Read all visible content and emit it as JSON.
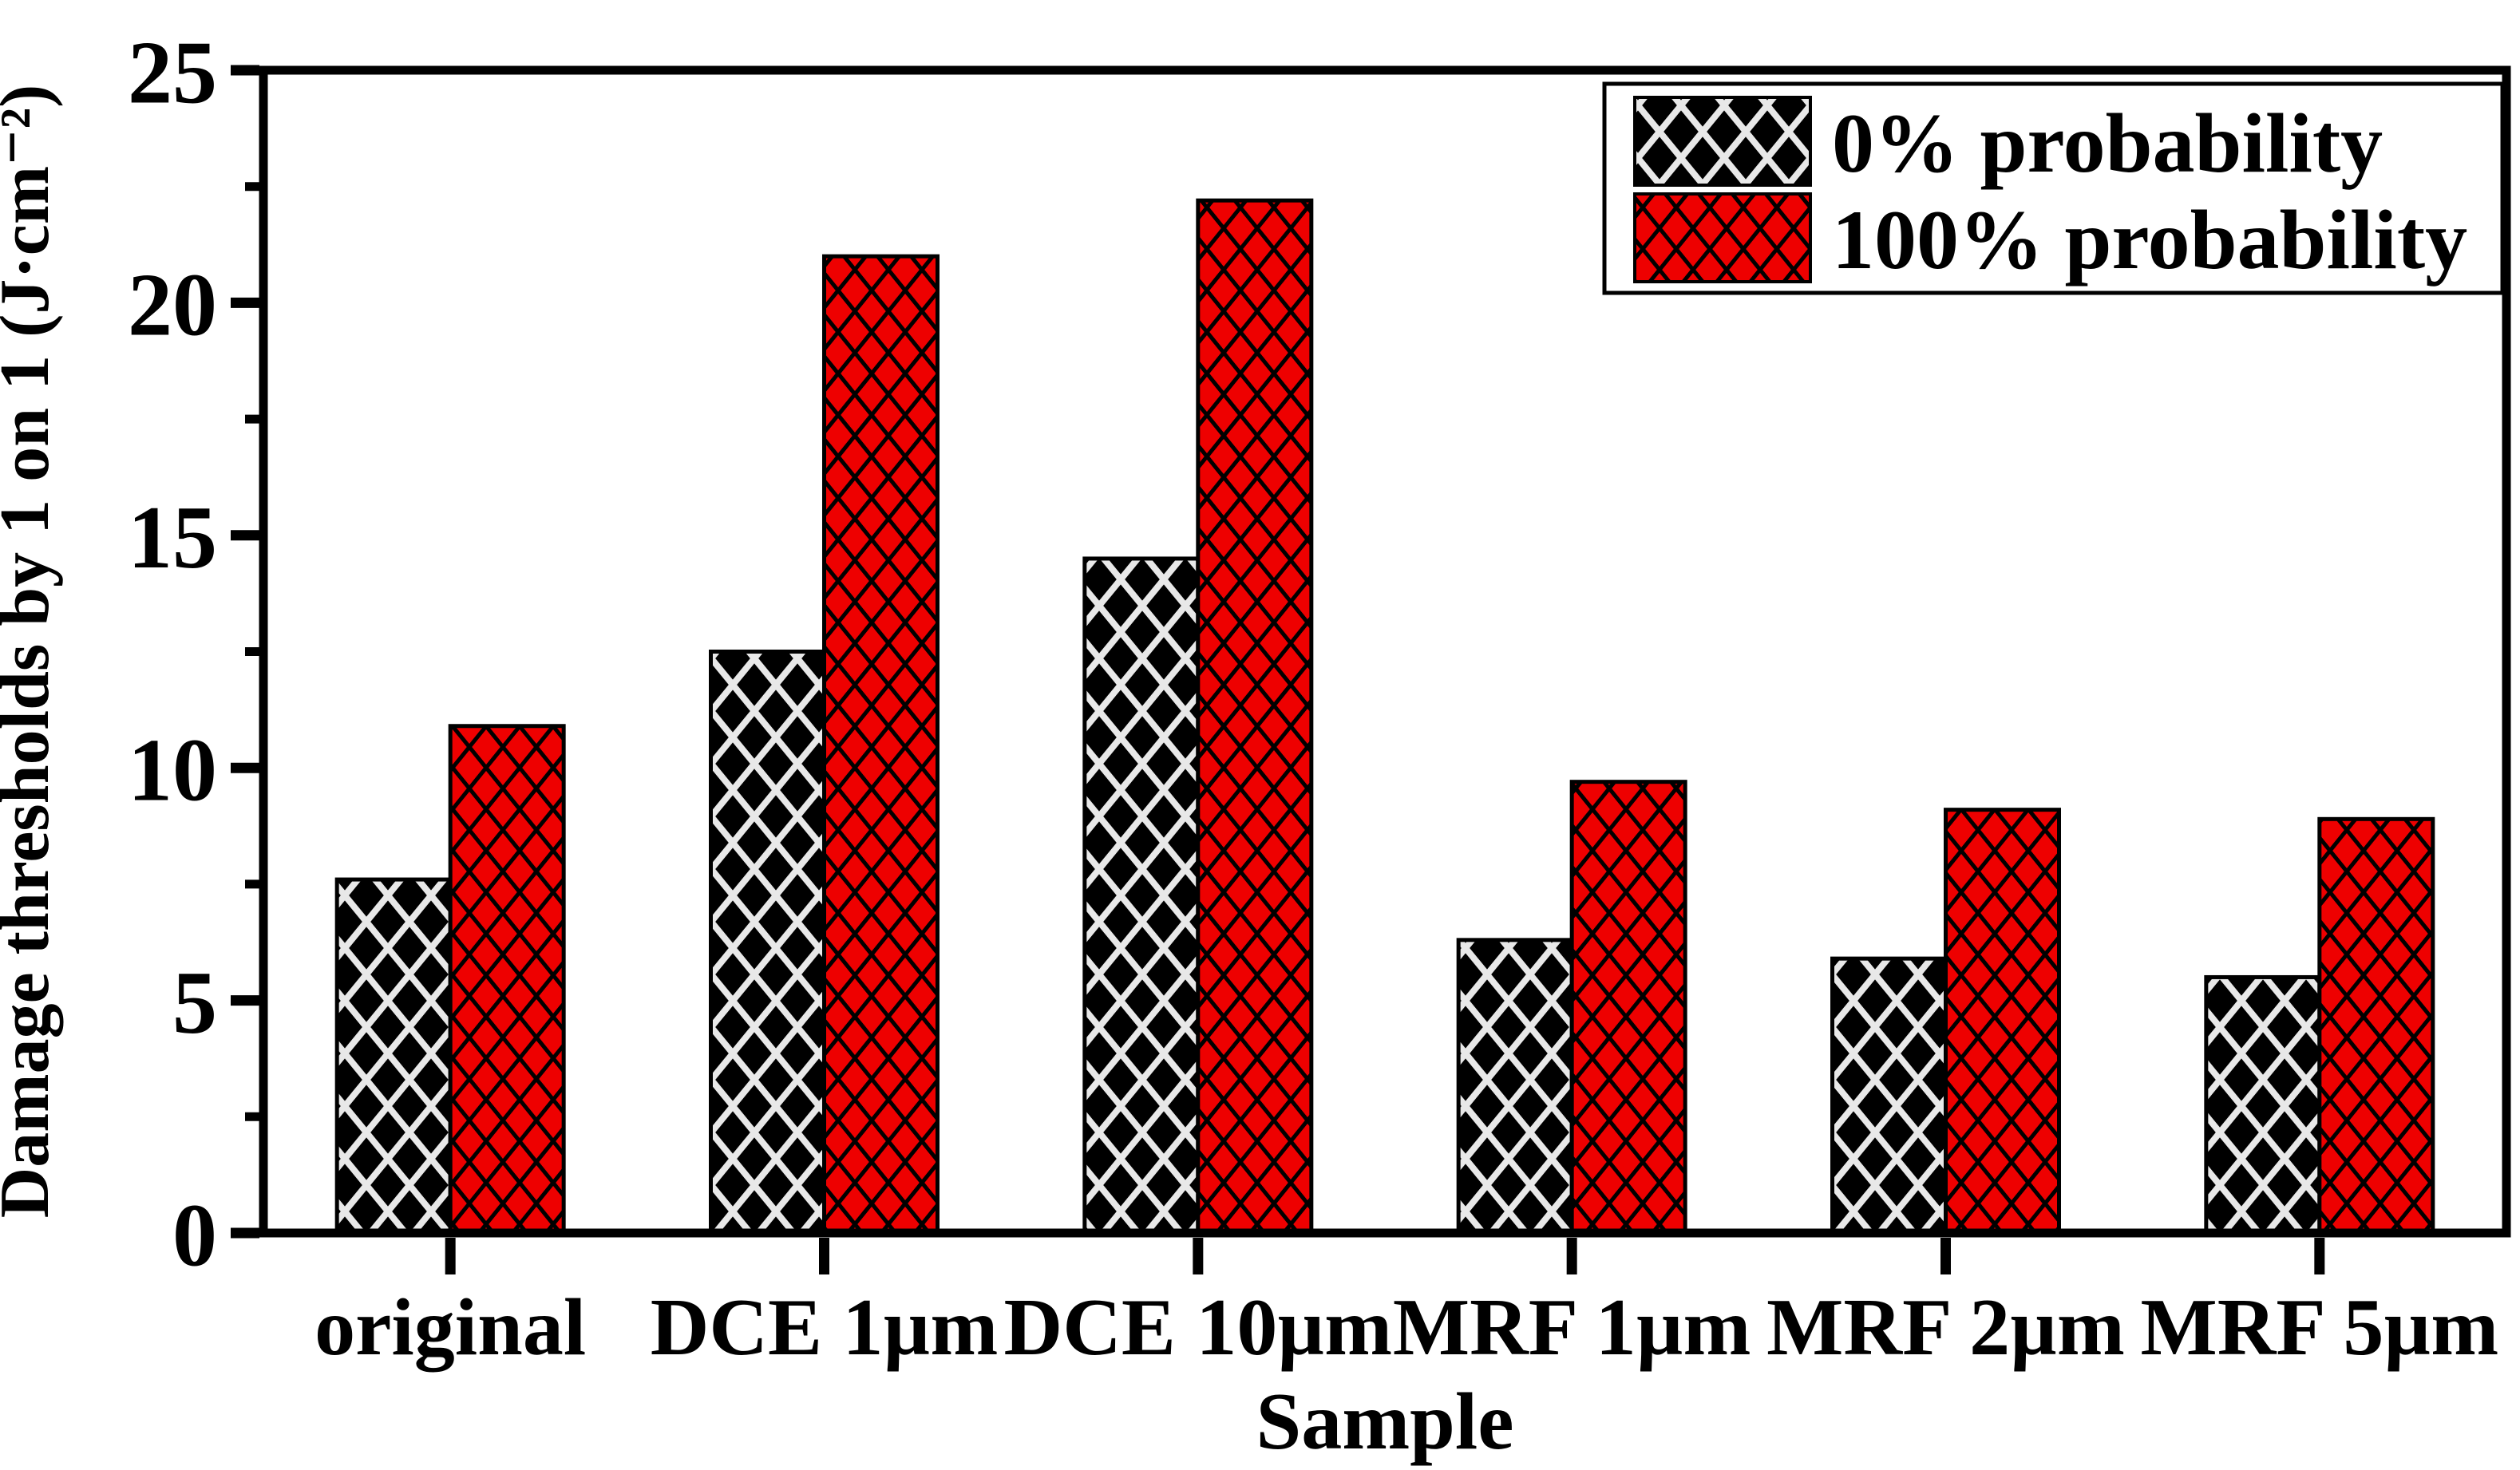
{
  "figure": {
    "background": "#ffffff",
    "axis_color": "#000000"
  },
  "chart_data": {
    "type": "bar",
    "title": "",
    "categories": [
      "original",
      "DCE 1µm",
      "DCE 10µm",
      "MRF 1µm",
      "MRF 2µm",
      "MRF 5µm"
    ],
    "series": [
      {
        "name": "0% probability",
        "fill": "#000000",
        "hatch_color": "#e8e8e8",
        "hatch": "diamond-crosshatch",
        "values": [
          7.6,
          12.5,
          14.5,
          6.3,
          5.9,
          5.5
        ]
      },
      {
        "name": "100% probability",
        "fill": "#ee0000",
        "hatch_color": "#000000",
        "hatch": "diamond-crosshatch-dense",
        "values": [
          10.9,
          21.0,
          22.2,
          9.7,
          9.1,
          8.9
        ]
      }
    ],
    "xlabel": "Sample",
    "ylabel": "Damage thresholds by 1 on 1 (J·cm⁻²)",
    "ylim": [
      0,
      25
    ],
    "ytick_step": 5,
    "yminor_step": 2.5,
    "ytick_labels": [
      "0",
      "5",
      "10",
      "15",
      "20",
      "25"
    ],
    "grid": false,
    "legend": {
      "position": "top-right",
      "border_color": "#000000",
      "background": "#ffffff"
    }
  }
}
